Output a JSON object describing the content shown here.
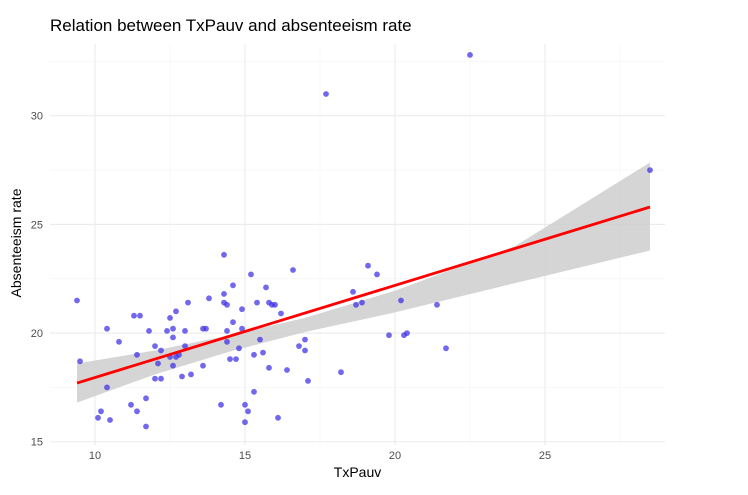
{
  "chart_data": {
    "type": "scatter",
    "title": "Relation between TxPauv and absenteeism rate",
    "xlabel": "TxPauv",
    "ylabel": "Absenteeism rate",
    "xlim": [
      8.5,
      29.0
    ],
    "ylim": [
      14.85,
      33.3
    ],
    "x_ticks": [
      10,
      15,
      20,
      25
    ],
    "y_ticks": [
      15,
      20,
      25,
      30
    ],
    "x_tick_labels": [
      "10",
      "15",
      "20",
      "25"
    ],
    "y_tick_labels": [
      "15",
      "20",
      "25",
      "30"
    ],
    "grid": true,
    "legend": "none",
    "point_color": "#3b2ee6",
    "line_color": "#ff0000",
    "band_color": "#cccccc",
    "points": [
      [
        9.4,
        21.5
      ],
      [
        9.5,
        18.7
      ],
      [
        10.1,
        16.1
      ],
      [
        10.2,
        16.4
      ],
      [
        10.4,
        20.2
      ],
      [
        10.4,
        17.5
      ],
      [
        10.5,
        16.0
      ],
      [
        10.8,
        19.6
      ],
      [
        11.2,
        16.7
      ],
      [
        11.3,
        20.8
      ],
      [
        11.4,
        19.0
      ],
      [
        11.4,
        16.4
      ],
      [
        11.5,
        20.8
      ],
      [
        11.7,
        17.0
      ],
      [
        11.7,
        15.7
      ],
      [
        11.8,
        20.1
      ],
      [
        12.0,
        19.4
      ],
      [
        12.0,
        17.9
      ],
      [
        12.1,
        18.6
      ],
      [
        12.2,
        17.9
      ],
      [
        12.2,
        19.2
      ],
      [
        12.4,
        20.1
      ],
      [
        12.5,
        18.9
      ],
      [
        12.5,
        20.7
      ],
      [
        12.6,
        20.2
      ],
      [
        12.6,
        19.8
      ],
      [
        12.6,
        18.5
      ],
      [
        12.7,
        18.9
      ],
      [
        12.7,
        21.0
      ],
      [
        12.8,
        19.0
      ],
      [
        12.9,
        18.0
      ],
      [
        13.0,
        19.4
      ],
      [
        13.0,
        20.1
      ],
      [
        13.1,
        21.4
      ],
      [
        13.2,
        18.1
      ],
      [
        13.6,
        18.5
      ],
      [
        13.6,
        20.2
      ],
      [
        13.7,
        20.2
      ],
      [
        13.8,
        21.6
      ],
      [
        14.2,
        16.7
      ],
      [
        14.3,
        21.8
      ],
      [
        14.3,
        21.4
      ],
      [
        14.3,
        23.6
      ],
      [
        14.4,
        19.6
      ],
      [
        14.4,
        20.1
      ],
      [
        14.4,
        21.3
      ],
      [
        14.5,
        18.8
      ],
      [
        14.6,
        22.2
      ],
      [
        14.6,
        20.5
      ],
      [
        14.7,
        18.8
      ],
      [
        14.8,
        19.3
      ],
      [
        14.9,
        21.1
      ],
      [
        14.9,
        20.2
      ],
      [
        15.0,
        16.7
      ],
      [
        15.0,
        15.9
      ],
      [
        15.1,
        16.4
      ],
      [
        15.2,
        22.7
      ],
      [
        15.3,
        17.3
      ],
      [
        15.3,
        19.0
      ],
      [
        15.4,
        21.4
      ],
      [
        15.5,
        19.7
      ],
      [
        15.6,
        19.1
      ],
      [
        15.7,
        22.1
      ],
      [
        15.8,
        21.4
      ],
      [
        15.8,
        18.4
      ],
      [
        15.9,
        21.3
      ],
      [
        16.0,
        21.3
      ],
      [
        16.1,
        16.1
      ],
      [
        16.2,
        20.9
      ],
      [
        16.4,
        18.3
      ],
      [
        16.6,
        22.9
      ],
      [
        16.8,
        19.4
      ],
      [
        17.0,
        19.7
      ],
      [
        17.0,
        19.2
      ],
      [
        17.1,
        17.8
      ],
      [
        17.7,
        31.0
      ],
      [
        18.2,
        18.2
      ],
      [
        18.6,
        21.9
      ],
      [
        18.7,
        21.3
      ],
      [
        18.9,
        21.4
      ],
      [
        19.1,
        23.1
      ],
      [
        19.4,
        22.7
      ],
      [
        19.8,
        19.9
      ],
      [
        20.2,
        21.5
      ],
      [
        20.3,
        19.9
      ],
      [
        20.4,
        20.0
      ],
      [
        21.4,
        21.3
      ],
      [
        21.7,
        19.3
      ],
      [
        22.5,
        32.8
      ],
      [
        28.5,
        27.5
      ]
    ],
    "regression_line": {
      "x": [
        9.4,
        28.5
      ],
      "y": [
        17.7,
        25.8
      ]
    },
    "confidence_band": {
      "x": [
        9.4,
        12.0,
        14.5,
        17.0,
        20.0,
        24.0,
        28.5
      ],
      "lower": [
        16.8,
        18.1,
        19.15,
        20.05,
        20.95,
        22.3,
        23.8
      ],
      "upper": [
        18.6,
        19.2,
        19.9,
        20.7,
        21.95,
        24.0,
        27.85
      ]
    }
  }
}
